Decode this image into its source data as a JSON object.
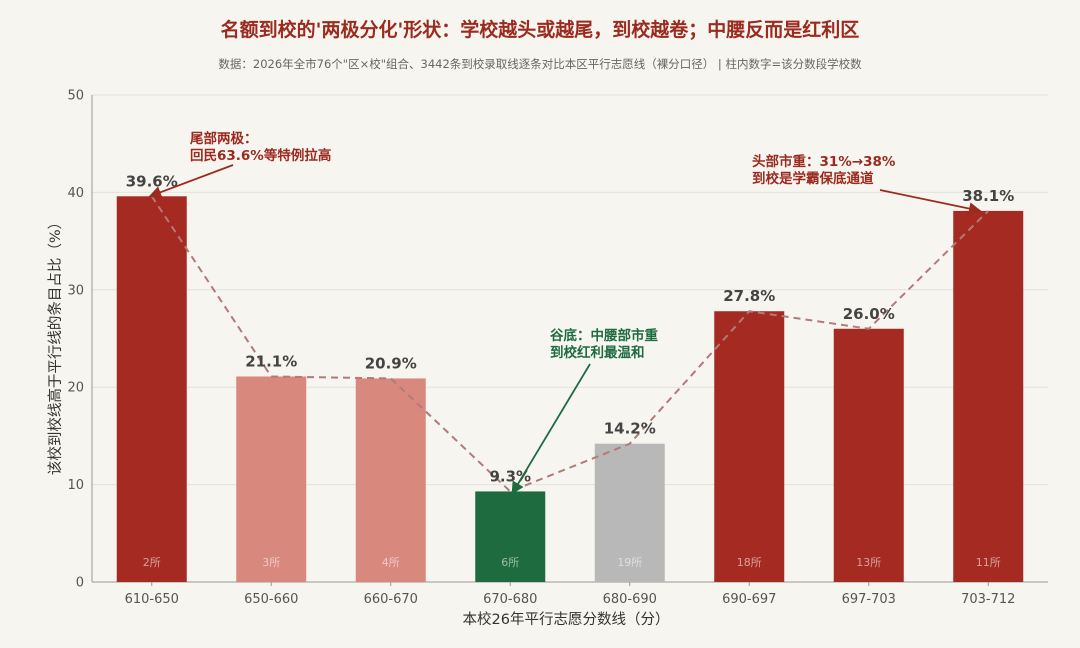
{
  "chart_data": {
    "type": "bar",
    "title": "名额到校的'两极分化'形状：学校越头或越尾，到校越卷；中腰反而是红利区",
    "subtitle": "数据：2026年全市76个\"区×校\"组合、3442条到校录取线逐条对比本区平行志愿线（裸分口径）   |  柱内数字=该分数段学校数",
    "xlabel": "本校26年平行志愿分数线（分）",
    "ylabel": "该校到校线高于平行线的条目占比（%）",
    "ylim": [
      0,
      50
    ],
    "yticks": [
      0,
      10,
      20,
      30,
      40,
      50
    ],
    "grid": true,
    "categories": [
      "610-650",
      "650-660",
      "660-670",
      "670-680",
      "680-690",
      "690-697",
      "697-703",
      "703-712"
    ],
    "values": [
      39.6,
      21.1,
      20.9,
      9.3,
      14.2,
      27.8,
      26.0,
      38.1
    ],
    "value_labels": [
      "39.6%",
      "21.1%",
      "20.9%",
      "9.3%",
      "14.2%",
      "27.8%",
      "26.0%",
      "38.1%"
    ],
    "counts": [
      "2所",
      "3所",
      "4所",
      "6所",
      "19所",
      "18所",
      "13所",
      "11所"
    ],
    "bar_colors": [
      "#a52a22",
      "#d9887e",
      "#d9887e",
      "#1e6b40",
      "#b8b8b8",
      "#a52a22",
      "#a52a22",
      "#a52a22"
    ],
    "trend_line_color": "#b27a78",
    "annotations": [
      {
        "name": "tail-annotation",
        "lines": [
          "尾部两极：",
          "回民63.6%等特例拉高"
        ],
        "color": "#9b2a1f",
        "target_index": 0
      },
      {
        "name": "trough-annotation",
        "lines": [
          "谷底：中腰部市重",
          "到校红利最温和"
        ],
        "color": "#1e6b40",
        "target_index": 3
      },
      {
        "name": "head-annotation",
        "lines": [
          "头部市重：31%→38%",
          "到校是学霸保底通道"
        ],
        "color": "#9b2a1f",
        "target_index": 7
      }
    ]
  },
  "colors": {
    "background": "#f7f5ef",
    "title": "#9b2a1f",
    "grid": "#e4e1d8",
    "axis": "#999999"
  }
}
